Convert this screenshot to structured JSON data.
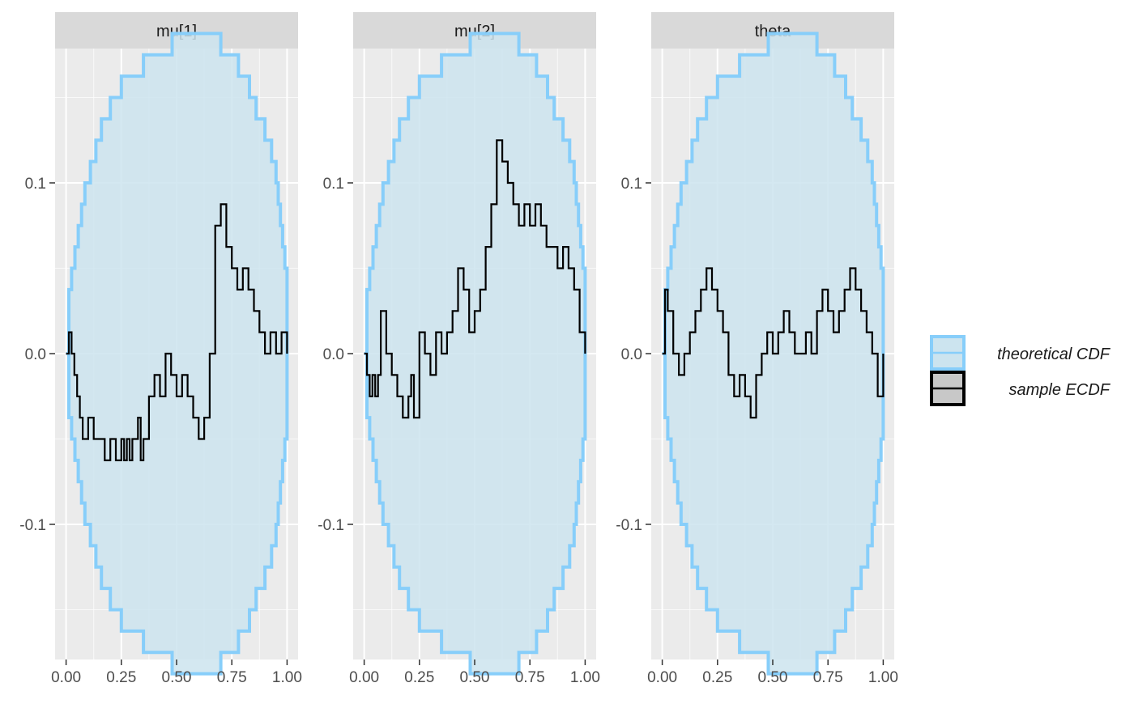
{
  "chart_data": {
    "type": "line",
    "facets": [
      {
        "label": "mu[1]",
        "ecdf": [
          [
            0.0,
            0.0
          ],
          [
            0.0125,
            0.0125
          ],
          [
            0.025,
            0.0
          ],
          [
            0.0375,
            -0.0125
          ],
          [
            0.05,
            -0.025
          ],
          [
            0.0625,
            -0.0375
          ],
          [
            0.075,
            -0.05
          ],
          [
            0.1,
            -0.0375
          ],
          [
            0.125,
            -0.05
          ],
          [
            0.15,
            -0.05
          ],
          [
            0.175,
            -0.0625
          ],
          [
            0.2,
            -0.05
          ],
          [
            0.225,
            -0.0625
          ],
          [
            0.25,
            -0.05
          ],
          [
            0.2625,
            -0.0625
          ],
          [
            0.275,
            -0.05
          ],
          [
            0.2875,
            -0.0625
          ],
          [
            0.3,
            -0.05
          ],
          [
            0.325,
            -0.0375
          ],
          [
            0.3375,
            -0.0625
          ],
          [
            0.35,
            -0.05
          ],
          [
            0.375,
            -0.025
          ],
          [
            0.4,
            -0.0125
          ],
          [
            0.425,
            -0.025
          ],
          [
            0.45,
            0.0
          ],
          [
            0.475,
            -0.0125
          ],
          [
            0.5,
            -0.025
          ],
          [
            0.525,
            -0.0125
          ],
          [
            0.55,
            -0.025
          ],
          [
            0.575,
            -0.0375
          ],
          [
            0.6,
            -0.05
          ],
          [
            0.625,
            -0.0375
          ],
          [
            0.65,
            0.0
          ],
          [
            0.675,
            0.075
          ],
          [
            0.7,
            0.0875
          ],
          [
            0.725,
            0.0625
          ],
          [
            0.75,
            0.05
          ],
          [
            0.775,
            0.0375
          ],
          [
            0.8,
            0.05
          ],
          [
            0.825,
            0.0375
          ],
          [
            0.85,
            0.025
          ],
          [
            0.875,
            0.0125
          ],
          [
            0.9,
            0.0
          ],
          [
            0.925,
            0.0125
          ],
          [
            0.95,
            0.0
          ],
          [
            0.975,
            0.0125
          ],
          [
            1.0,
            0.0
          ]
        ]
      },
      {
        "label": "mu[2]",
        "ecdf": [
          [
            0.0,
            0.0
          ],
          [
            0.0125,
            -0.0125
          ],
          [
            0.025,
            -0.025
          ],
          [
            0.0375,
            -0.0125
          ],
          [
            0.05,
            -0.025
          ],
          [
            0.0625,
            -0.0125
          ],
          [
            0.075,
            0.025
          ],
          [
            0.1,
            0.0
          ],
          [
            0.125,
            -0.0125
          ],
          [
            0.15,
            -0.025
          ],
          [
            0.175,
            -0.0375
          ],
          [
            0.2,
            -0.025
          ],
          [
            0.2125,
            -0.0125
          ],
          [
            0.225,
            -0.0375
          ],
          [
            0.25,
            0.0125
          ],
          [
            0.275,
            0.0
          ],
          [
            0.3,
            -0.0125
          ],
          [
            0.325,
            0.0125
          ],
          [
            0.35,
            0.0
          ],
          [
            0.375,
            0.0125
          ],
          [
            0.4,
            0.025
          ],
          [
            0.425,
            0.05
          ],
          [
            0.45,
            0.0375
          ],
          [
            0.475,
            0.0125
          ],
          [
            0.5,
            0.025
          ],
          [
            0.525,
            0.0375
          ],
          [
            0.55,
            0.0625
          ],
          [
            0.575,
            0.0875
          ],
          [
            0.6,
            0.125
          ],
          [
            0.625,
            0.1125
          ],
          [
            0.65,
            0.1
          ],
          [
            0.675,
            0.0875
          ],
          [
            0.7,
            0.075
          ],
          [
            0.725,
            0.0875
          ],
          [
            0.75,
            0.075
          ],
          [
            0.775,
            0.0875
          ],
          [
            0.8,
            0.075
          ],
          [
            0.825,
            0.0625
          ],
          [
            0.85,
            0.0625
          ],
          [
            0.875,
            0.05
          ],
          [
            0.9,
            0.0625
          ],
          [
            0.925,
            0.05
          ],
          [
            0.95,
            0.0375
          ],
          [
            0.975,
            0.0125
          ],
          [
            1.0,
            0.0
          ]
        ]
      },
      {
        "label": "theta",
        "ecdf": [
          [
            0.0,
            0.0
          ],
          [
            0.0125,
            0.0375
          ],
          [
            0.025,
            0.025
          ],
          [
            0.05,
            0.0
          ],
          [
            0.075,
            -0.0125
          ],
          [
            0.1,
            0.0
          ],
          [
            0.125,
            0.0125
          ],
          [
            0.15,
            0.025
          ],
          [
            0.175,
            0.0375
          ],
          [
            0.2,
            0.05
          ],
          [
            0.225,
            0.0375
          ],
          [
            0.25,
            0.025
          ],
          [
            0.275,
            0.0125
          ],
          [
            0.3,
            -0.0125
          ],
          [
            0.325,
            -0.025
          ],
          [
            0.35,
            -0.0125
          ],
          [
            0.375,
            -0.025
          ],
          [
            0.4,
            -0.0375
          ],
          [
            0.425,
            -0.0125
          ],
          [
            0.45,
            0.0
          ],
          [
            0.475,
            0.0125
          ],
          [
            0.5,
            0.0
          ],
          [
            0.525,
            0.0125
          ],
          [
            0.55,
            0.025
          ],
          [
            0.575,
            0.0125
          ],
          [
            0.6,
            0.0
          ],
          [
            0.65,
            0.0125
          ],
          [
            0.675,
            0.0
          ],
          [
            0.7,
            0.025
          ],
          [
            0.725,
            0.0375
          ],
          [
            0.75,
            0.025
          ],
          [
            0.775,
            0.0125
          ],
          [
            0.8,
            0.025
          ],
          [
            0.825,
            0.0375
          ],
          [
            0.85,
            0.05
          ],
          [
            0.875,
            0.0375
          ],
          [
            0.9,
            0.025
          ],
          [
            0.925,
            0.0125
          ],
          [
            0.95,
            0.0
          ],
          [
            0.975,
            -0.025
          ],
          [
            1.0,
            0.0
          ]
        ]
      }
    ],
    "band": [
      [
        0.0,
        0.0
      ],
      [
        0.0125,
        0.0375
      ],
      [
        0.025,
        0.05
      ],
      [
        0.04,
        0.0625
      ],
      [
        0.055,
        0.075
      ],
      [
        0.07,
        0.0875
      ],
      [
        0.085,
        0.1
      ],
      [
        0.11,
        0.1125
      ],
      [
        0.135,
        0.125
      ],
      [
        0.16,
        0.1375
      ],
      [
        0.2,
        0.15
      ],
      [
        0.25,
        0.1625
      ],
      [
        0.35,
        0.175
      ],
      [
        0.48,
        0.1875
      ],
      [
        0.6,
        0.1875
      ],
      [
        0.7,
        0.175
      ],
      [
        0.78,
        0.1625
      ],
      [
        0.83,
        0.15
      ],
      [
        0.86,
        0.1375
      ],
      [
        0.9,
        0.125
      ],
      [
        0.93,
        0.1125
      ],
      [
        0.95,
        0.1
      ],
      [
        0.96,
        0.0875
      ],
      [
        0.97,
        0.075
      ],
      [
        0.98,
        0.0625
      ],
      [
        0.99,
        0.05
      ],
      [
        1.0,
        0.0
      ]
    ],
    "x_ticks": [
      "0.00",
      "0.25",
      "0.50",
      "0.75",
      "1.00"
    ],
    "y_ticks": [
      "-0.1",
      "0.0",
      "0.1"
    ],
    "xlim": [
      0,
      1
    ],
    "ylim": [
      -0.17,
      0.17
    ],
    "grid": true,
    "legend": {
      "position": "right",
      "entries": [
        {
          "label": "theoretical CDF",
          "fill": "#cce4ef",
          "stroke": "#87cefa"
        },
        {
          "label": "sample ECDF",
          "fill": "#c8c8c8",
          "stroke": "#000000"
        }
      ]
    },
    "colors": {
      "panel_bg": "#ebebeb",
      "grid": "#ffffff",
      "strip_bg": "#d9d9d9",
      "band_fill": "#cce4ef",
      "band_stroke": "#87cefa",
      "ecdf": "#000000"
    }
  }
}
